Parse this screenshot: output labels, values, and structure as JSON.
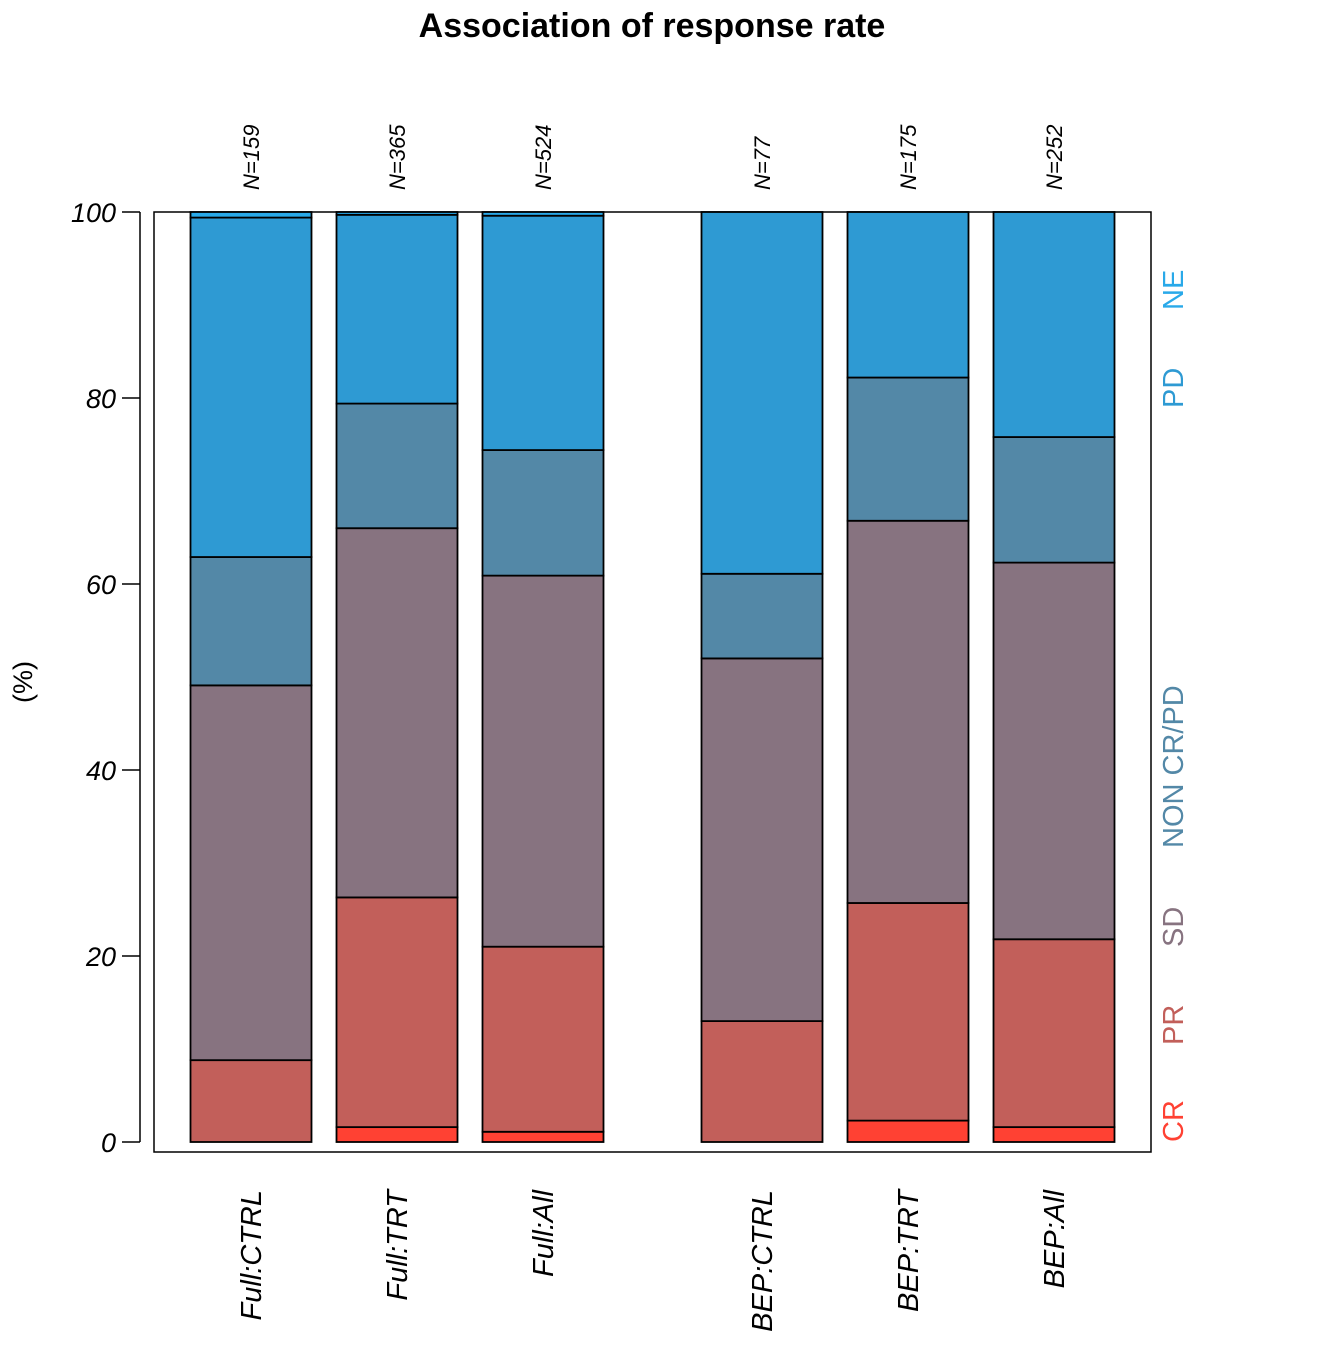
{
  "chart_data": {
    "type": "bar",
    "stacked": true,
    "title": "Association of response rate",
    "ylabel": "(%)",
    "xlabel": "",
    "ylim": [
      0,
      100
    ],
    "yticks": [
      0,
      20,
      40,
      60,
      80,
      100
    ],
    "grid": false,
    "legend_position": "right",
    "categories": [
      "Full:CTRL",
      "Full:TRT",
      "Full:All",
      "BEP:CTRL",
      "BEP:TRT",
      "BEP:All"
    ],
    "groups": [
      [
        "Full:CTRL",
        "Full:TRT",
        "Full:All"
      ],
      [
        "BEP:CTRL",
        "BEP:TRT",
        "BEP:All"
      ]
    ],
    "n_labels": [
      "N=159",
      "N=365",
      "N=524",
      "N=77",
      "N=175",
      "N=252"
    ],
    "series": [
      {
        "name": "CR",
        "color": "#FF4133",
        "values": [
          0.0,
          1.6,
          1.1,
          0.0,
          2.3,
          1.6
        ]
      },
      {
        "name": "PR",
        "color": "#C25F5A",
        "values": [
          8.8,
          24.7,
          19.9,
          13.0,
          23.4,
          20.2
        ]
      },
      {
        "name": "SD",
        "color": "#877380",
        "values": [
          40.3,
          39.7,
          39.9,
          39.0,
          41.1,
          40.5
        ]
      },
      {
        "name": "NON CR/PD",
        "color": "#5388A7",
        "values": [
          13.8,
          13.4,
          13.5,
          9.1,
          15.4,
          13.5
        ]
      },
      {
        "name": "PD",
        "color": "#2E9AD3",
        "values": [
          36.5,
          20.3,
          25.2,
          38.9,
          17.8,
          24.2
        ]
      },
      {
        "name": "NE",
        "color": "#29A9E9",
        "values": [
          0.6,
          0.3,
          0.4,
          0.0,
          0.0,
          0.0
        ]
      }
    ]
  }
}
